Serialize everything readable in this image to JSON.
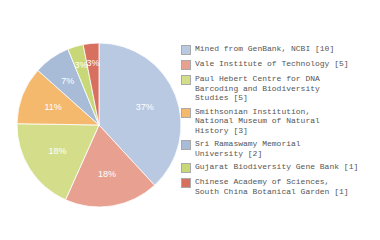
{
  "chart_data": {
    "type": "pie",
    "categories": [
      "Mined from GenBank, NCBI [10]",
      "Vale Institute of Technology [5]",
      "Paul Hebert Centre for DNA\nBarcoding and Biodiversity\nStudies [5]",
      "Smithsonian Institution,\nNational Museum of Natural\nHistory [3]",
      "Sri Ramaswamy Memorial\nUniversity [2]",
      "Gujarat Biodiversity Gene Bank [1]",
      "Chinese Academy of Sciences,\nSouth China Botanical Garden [1]"
    ],
    "values": [
      37,
      18,
      18,
      11,
      7,
      3,
      3
    ],
    "value_labels": [
      "37%",
      "18%",
      "18%",
      "11%",
      "7%",
      "3%",
      "3%"
    ],
    "colors": [
      "#b8c9e1",
      "#e8a090",
      "#d4de8a",
      "#f5b96e",
      "#a8bcd8",
      "#c8d878",
      "#d87060"
    ],
    "data_labels": true,
    "legend": "right"
  }
}
